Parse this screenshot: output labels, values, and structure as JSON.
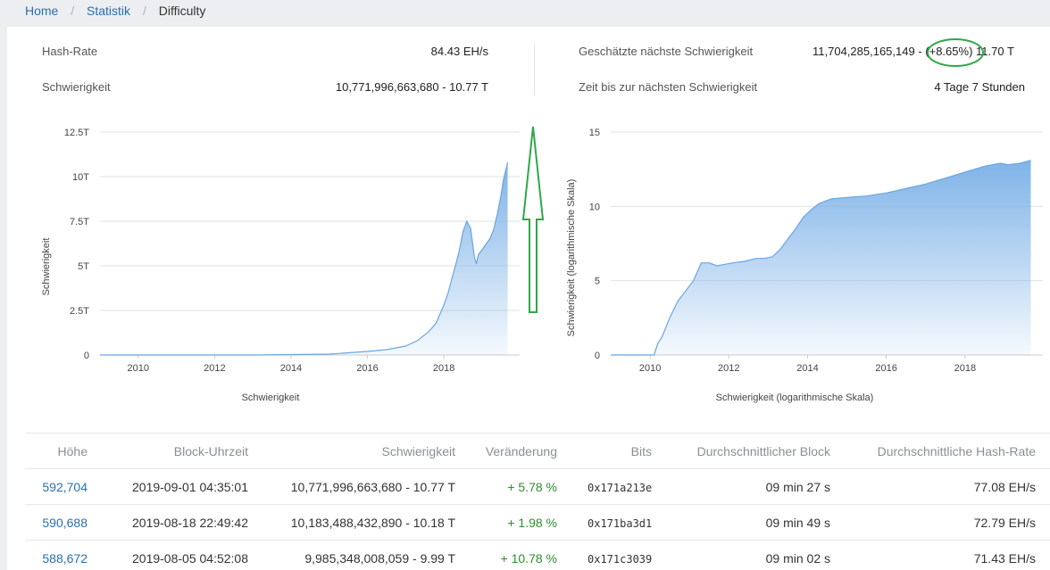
{
  "breadcrumb": {
    "home": "Home",
    "statistik": "Statistik",
    "current": "Difficulty"
  },
  "stats": {
    "hashrate_label": "Hash-Rate",
    "hashrate_value": "84.43 EH/s",
    "difficulty_label": "Schwierigkeit",
    "difficulty_value": "10,771,996,663,680 - 10.77 T",
    "next_label": "Geschätzte nächste Schwierigkeit",
    "next_value_a": "11,704,285,165,149 -",
    "next_value_pct": "(+8.65%)",
    "next_value_b": "11.70 T",
    "time_label": "Zeit bis zur nächsten Schwierigkeit",
    "time_value": "4 Tage 7 Stunden"
  },
  "chart_data": [
    {
      "type": "area",
      "xlabel": "Schwierigkeit",
      "ylabel": "Schwierigkeit",
      "yticks": [
        "0",
        "2.5T",
        "5T",
        "7.5T",
        "10T",
        "12.5T"
      ],
      "xticks": [
        "2010",
        "2012",
        "2014",
        "2016",
        "2018"
      ],
      "ylim": [
        0,
        12.5
      ],
      "xlim": [
        2009.0,
        2019.75
      ],
      "grid": true,
      "color": "#7fb3e8",
      "x": [
        2009.0,
        2013.0,
        2015.0,
        2016.0,
        2016.5,
        2017.0,
        2017.3,
        2017.6,
        2017.8,
        2018.0,
        2018.1,
        2018.2,
        2018.3,
        2018.4,
        2018.5,
        2018.6,
        2018.7,
        2018.8,
        2018.85,
        2018.9,
        2019.0,
        2019.1,
        2019.2,
        2019.3,
        2019.4,
        2019.5,
        2019.55,
        2019.6,
        2019.67
      ],
      "y": [
        0.0,
        0.0,
        0.05,
        0.2,
        0.3,
        0.5,
        0.8,
        1.3,
        1.8,
        2.8,
        3.4,
        4.2,
        5.0,
        5.8,
        6.9,
        7.5,
        7.1,
        5.5,
        5.1,
        5.6,
        5.9,
        6.2,
        6.5,
        7.0,
        7.9,
        9.0,
        9.7,
        10.2,
        10.8
      ]
    },
    {
      "type": "area",
      "xlabel": "Schwierigkeit (logarithmische Skala)",
      "ylabel": "Schwierigkeit (logarithmische Skala)",
      "yticks": [
        "0",
        "5",
        "10",
        "15"
      ],
      "xticks": [
        "2010",
        "2012",
        "2014",
        "2016",
        "2018"
      ],
      "ylim": [
        0,
        15
      ],
      "xlim": [
        2009.0,
        2019.75
      ],
      "grid": true,
      "color": "#7fb3e8",
      "x": [
        2009.0,
        2010.1,
        2010.2,
        2010.3,
        2010.5,
        2010.7,
        2010.9,
        2011.1,
        2011.3,
        2011.5,
        2011.7,
        2011.9,
        2012.1,
        2012.4,
        2012.7,
        2012.9,
        2013.1,
        2013.3,
        2013.5,
        2013.7,
        2013.9,
        2014.1,
        2014.3,
        2014.6,
        2015.0,
        2015.5,
        2016.0,
        2016.5,
        2017.0,
        2017.5,
        2018.0,
        2018.5,
        2018.9,
        2019.1,
        2019.4,
        2019.67
      ],
      "y": [
        0.0,
        0.0,
        0.8,
        1.2,
        2.5,
        3.6,
        4.3,
        5.0,
        6.2,
        6.2,
        6.0,
        6.1,
        6.2,
        6.3,
        6.5,
        6.5,
        6.6,
        7.1,
        7.8,
        8.5,
        9.3,
        9.8,
        10.2,
        10.5,
        10.6,
        10.7,
        10.9,
        11.2,
        11.5,
        11.9,
        12.3,
        12.7,
        12.9,
        12.8,
        12.9,
        13.1
      ]
    }
  ],
  "table": {
    "headers": [
      "Höhe",
      "Block-Uhrzeit",
      "Schwierigkeit",
      "Veränderung",
      "Bits",
      "Durchschnittlicher Block",
      "Durchschnittliche Hash-Rate"
    ],
    "rows": [
      [
        "592,704",
        "2019-09-01 04:35:01",
        "10,771,996,663,680 - 10.77 T",
        "+ 5.78 %",
        "0x171a213e",
        "09 min 27 s",
        "77.08 EH/s"
      ],
      [
        "590,688",
        "2019-08-18 22:49:42",
        "10,183,488,432,890 - 10.18 T",
        "+ 1.98 %",
        "0x171ba3d1",
        "09 min 49 s",
        "72.79 EH/s"
      ],
      [
        "588,672",
        "2019-08-05 04:52:08",
        "9,985,348,008,059 - 9.99 T",
        "+ 10.78 %",
        "0x171c3039",
        "09 min 02 s",
        "71.43 EH/s"
      ]
    ]
  },
  "annotation": {
    "arrow_color": "#2ea84a",
    "circle_color": "#2ea84a"
  }
}
